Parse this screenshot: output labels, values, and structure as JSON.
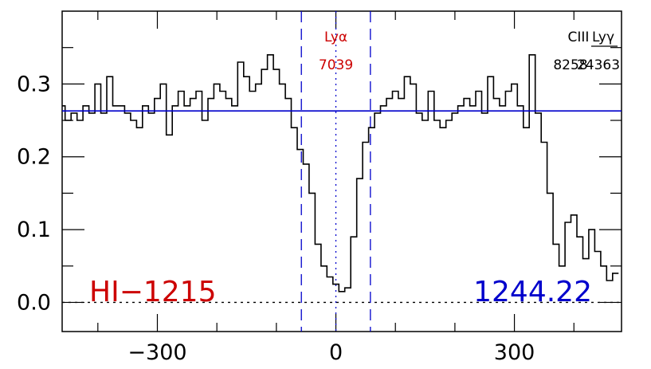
{
  "chart_data": {
    "type": "line",
    "title": "",
    "xlabel": "",
    "ylabel": "",
    "xlim": [
      -460,
      480
    ],
    "ylim": [
      -0.04,
      0.4
    ],
    "x_ticks": [
      -300,
      0,
      300
    ],
    "x_tick_labels": [
      "−300",
      "0",
      "300"
    ],
    "y_ticks": [
      0.0,
      0.1,
      0.2,
      0.3
    ],
    "y_tick_labels": [
      "0.0",
      "0.1",
      "0.2",
      "0.3"
    ],
    "continuum_level": 0.263,
    "zero_level": 0.0,
    "center_velocity": 0,
    "window_velocities": [
      -58,
      58
    ],
    "ion_label": "HI−1215",
    "wavelength_label": "1244.22",
    "annotations": [
      {
        "text_top": "Lyα",
        "text_bottom": "7039",
        "x": 0,
        "color": "#cc0000"
      },
      {
        "text_top": "CIII",
        "text_bottom": "8258",
        "x": 360,
        "color": "#000000"
      },
      {
        "text_top": "Lyγ",
        "text_bottom": "24363",
        "x": 390,
        "color": "#000000"
      }
    ],
    "colors": {
      "spectrum": "#000000",
      "continuum": "#0000cc",
      "lya": "#cc0000",
      "window": "#0000cc",
      "wavelength": "#0000cc"
    },
    "series": [
      {
        "x": [
          -460,
          -450,
          -440,
          -430,
          -420,
          -410,
          -400,
          -390,
          -380,
          -370,
          -360,
          -350,
          -340,
          -330,
          -320,
          -310,
          -300,
          -290,
          -280,
          -270,
          -260,
          -250,
          -240,
          -230,
          -220,
          -210,
          -200,
          -190,
          -180,
          -170,
          -160,
          -150,
          -140,
          -130,
          -120,
          -110,
          -100,
          -90,
          -80,
          -70,
          -60,
          -50,
          -40,
          -30,
          -20,
          -10,
          0,
          10,
          20,
          30,
          40,
          50,
          60,
          70,
          80,
          90,
          100,
          110,
          120,
          130,
          140,
          150,
          160,
          170,
          180,
          190,
          200,
          210,
          220,
          230,
          240,
          250,
          260,
          270,
          280,
          290,
          300,
          310,
          320,
          330,
          340,
          350,
          360,
          370,
          380,
          390,
          400,
          410,
          420,
          430,
          440,
          450,
          460,
          470
        ],
        "y": [
          0.27,
          0.25,
          0.26,
          0.25,
          0.27,
          0.26,
          0.3,
          0.26,
          0.31,
          0.27,
          0.27,
          0.26,
          0.25,
          0.24,
          0.27,
          0.26,
          0.28,
          0.3,
          0.23,
          0.27,
          0.29,
          0.27,
          0.28,
          0.29,
          0.25,
          0.28,
          0.3,
          0.29,
          0.28,
          0.27,
          0.33,
          0.31,
          0.29,
          0.3,
          0.32,
          0.34,
          0.32,
          0.3,
          0.28,
          0.24,
          0.21,
          0.19,
          0.15,
          0.08,
          0.05,
          0.035,
          0.025,
          0.015,
          0.02,
          0.09,
          0.17,
          0.22,
          0.24,
          0.26,
          0.27,
          0.28,
          0.29,
          0.28,
          0.31,
          0.3,
          0.26,
          0.25,
          0.29,
          0.25,
          0.24,
          0.25,
          0.26,
          0.27,
          0.28,
          0.27,
          0.29,
          0.26,
          0.31,
          0.28,
          0.27,
          0.29,
          0.3,
          0.27,
          0.24,
          0.34,
          0.26,
          0.22,
          0.15,
          0.08,
          0.05,
          0.11,
          0.12,
          0.09,
          0.06,
          0.1,
          0.07,
          0.05,
          0.03,
          0.04
        ]
      }
    ]
  }
}
